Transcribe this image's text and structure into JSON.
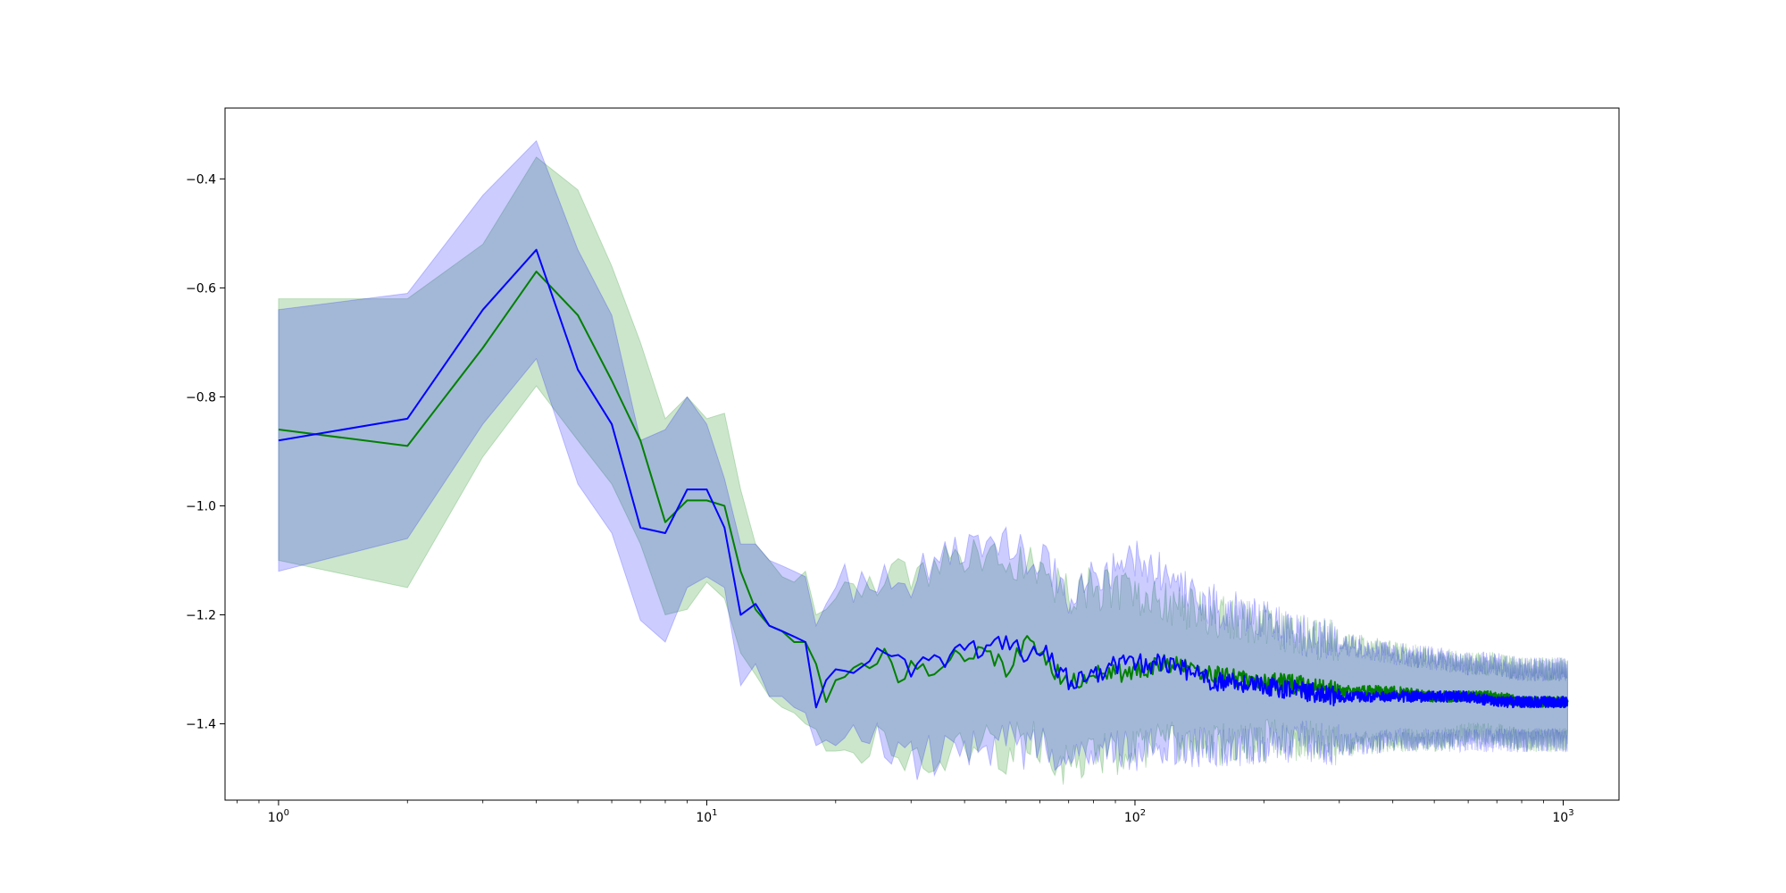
{
  "chart_data": {
    "type": "line",
    "title": "",
    "xlabel": "",
    "ylabel": "",
    "x_scale": "log",
    "xlim": [
      0.75,
      1350
    ],
    "ylim": [
      -1.54,
      -0.27
    ],
    "grid": false,
    "legend": "none",
    "x_ticks": [
      {
        "value": 1,
        "base": "10",
        "exp": "0"
      },
      {
        "value": 10,
        "base": "10",
        "exp": "1"
      },
      {
        "value": 100,
        "base": "10",
        "exp": "2"
      },
      {
        "value": 1000,
        "base": "10",
        "exp": "3"
      }
    ],
    "y_ticks": [
      {
        "value": -1.4,
        "label": "−1.4"
      },
      {
        "value": -1.2,
        "label": "−1.2"
      },
      {
        "value": -1.0,
        "label": "−1.0"
      },
      {
        "value": -0.8,
        "label": "−0.8"
      },
      {
        "value": -0.6,
        "label": "−0.6"
      },
      {
        "value": -0.4,
        "label": "−0.4"
      }
    ],
    "x_domain": [
      1,
      1024
    ],
    "series": [
      {
        "color": "#008000",
        "band_color": "#008000",
        "band_opacity": 0.2,
        "x": [
          1,
          2,
          3,
          4,
          5,
          6,
          7,
          8,
          9,
          10,
          11,
          12,
          13,
          14,
          15,
          16,
          17,
          18,
          19,
          20,
          22,
          24,
          26,
          28,
          30,
          33,
          36,
          40,
          45,
          50,
          55,
          60,
          70,
          80,
          90,
          100,
          120,
          150,
          200,
          250,
          300,
          400,
          500,
          600,
          700,
          800,
          1000
        ],
        "y": [
          -0.86,
          -0.89,
          -0.71,
          -0.57,
          -0.65,
          -0.77,
          -0.88,
          -1.03,
          -0.99,
          -0.99,
          -1.0,
          -1.12,
          -1.19,
          -1.22,
          -1.23,
          -1.25,
          -1.25,
          -1.29,
          -1.36,
          -1.32,
          -1.29,
          -1.3,
          -1.26,
          -1.31,
          -1.29,
          -1.3,
          -1.28,
          -1.27,
          -1.26,
          -1.3,
          -1.25,
          -1.27,
          -1.33,
          -1.3,
          -1.31,
          -1.3,
          -1.29,
          -1.31,
          -1.32,
          -1.33,
          -1.34,
          -1.34,
          -1.35,
          -1.35,
          -1.35,
          -1.36,
          -1.36
        ],
        "upper": [
          -0.62,
          -0.62,
          -0.52,
          -0.36,
          -0.42,
          -0.56,
          -0.7,
          -0.84,
          -0.8,
          -0.84,
          -0.83,
          -0.97,
          -1.07,
          -1.1,
          -1.13,
          -1.14,
          -1.12,
          -1.2,
          -1.19,
          -1.17,
          -1.16,
          -1.13,
          -1.13,
          -1.12,
          -1.13,
          -1.12,
          -1.1,
          -1.1,
          -1.1,
          -1.12,
          -1.1,
          -1.12,
          -1.16,
          -1.15,
          -1.16,
          -1.16,
          -1.18,
          -1.2,
          -1.22,
          -1.24,
          -1.25,
          -1.27,
          -1.28,
          -1.29,
          -1.29,
          -1.3,
          -1.3
        ],
        "lower": [
          -1.1,
          -1.15,
          -0.91,
          -0.78,
          -0.88,
          -0.96,
          -1.07,
          -1.2,
          -1.19,
          -1.14,
          -1.17,
          -1.27,
          -1.31,
          -1.35,
          -1.37,
          -1.38,
          -1.4,
          -1.41,
          -1.45,
          -1.45,
          -1.44,
          -1.45,
          -1.42,
          -1.46,
          -1.46,
          -1.47,
          -1.45,
          -1.44,
          -1.44,
          -1.46,
          -1.42,
          -1.44,
          -1.48,
          -1.45,
          -1.46,
          -1.45,
          -1.43,
          -1.44,
          -1.43,
          -1.43,
          -1.44,
          -1.43,
          -1.43,
          -1.42,
          -1.42,
          -1.43,
          -1.43
        ]
      },
      {
        "color": "#0000ff",
        "band_color": "#0000ff",
        "band_opacity": 0.2,
        "x": [
          1,
          2,
          3,
          4,
          5,
          6,
          7,
          8,
          9,
          10,
          11,
          12,
          13,
          14,
          15,
          16,
          17,
          18,
          19,
          20,
          22,
          24,
          26,
          28,
          30,
          33,
          36,
          40,
          45,
          50,
          55,
          60,
          70,
          80,
          90,
          100,
          120,
          150,
          200,
          250,
          300,
          400,
          500,
          600,
          700,
          800,
          1000
        ],
        "y": [
          -0.88,
          -0.84,
          -0.64,
          -0.53,
          -0.75,
          -0.85,
          -1.04,
          -1.05,
          -0.97,
          -0.97,
          -1.04,
          -1.2,
          -1.18,
          -1.22,
          -1.23,
          -1.24,
          -1.25,
          -1.37,
          -1.32,
          -1.3,
          -1.29,
          -1.28,
          -1.27,
          -1.29,
          -1.3,
          -1.29,
          -1.28,
          -1.25,
          -1.27,
          -1.24,
          -1.27,
          -1.26,
          -1.32,
          -1.31,
          -1.29,
          -1.29,
          -1.29,
          -1.32,
          -1.33,
          -1.34,
          -1.35,
          -1.35,
          -1.35,
          -1.35,
          -1.36,
          -1.36,
          -1.36
        ],
        "upper": [
          -0.64,
          -0.61,
          -0.43,
          -0.33,
          -0.53,
          -0.65,
          -0.88,
          -0.86,
          -0.8,
          -0.85,
          -0.95,
          -1.07,
          -1.07,
          -1.1,
          -1.11,
          -1.12,
          -1.13,
          -1.22,
          -1.18,
          -1.15,
          -1.14,
          -1.14,
          -1.13,
          -1.14,
          -1.13,
          -1.11,
          -1.1,
          -1.07,
          -1.09,
          -1.06,
          -1.09,
          -1.09,
          -1.16,
          -1.13,
          -1.11,
          -1.1,
          -1.13,
          -1.18,
          -1.21,
          -1.24,
          -1.25,
          -1.27,
          -1.28,
          -1.29,
          -1.29,
          -1.3,
          -1.3
        ],
        "lower": [
          -1.12,
          -1.06,
          -0.85,
          -0.73,
          -0.96,
          -1.05,
          -1.21,
          -1.25,
          -1.15,
          -1.13,
          -1.15,
          -1.33,
          -1.29,
          -1.35,
          -1.35,
          -1.37,
          -1.38,
          -1.44,
          -1.43,
          -1.44,
          -1.43,
          -1.44,
          -1.43,
          -1.45,
          -1.47,
          -1.46,
          -1.46,
          -1.44,
          -1.46,
          -1.43,
          -1.45,
          -1.44,
          -1.47,
          -1.45,
          -1.45,
          -1.45,
          -1.44,
          -1.44,
          -1.44,
          -1.43,
          -1.44,
          -1.43,
          -1.43,
          -1.43,
          -1.43,
          -1.43,
          -1.43
        ]
      }
    ]
  }
}
